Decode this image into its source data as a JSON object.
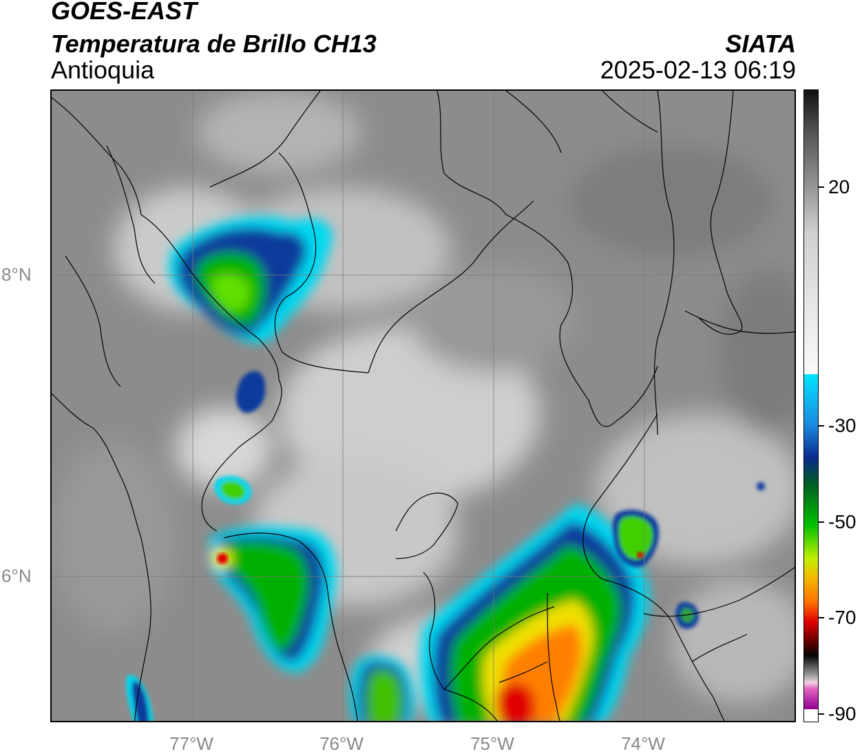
{
  "header": {
    "title": "GOES-EAST",
    "subtitle": "Temperatura de Brillo CH13",
    "region": "Antioquia",
    "organization": "SIATA",
    "timestamp": "2025-02-13 06:19"
  },
  "map": {
    "lat_labels": [
      "8°N",
      "6°N"
    ],
    "lon_labels": [
      "77°W",
      "76°W",
      "75°W",
      "74°W"
    ]
  },
  "colorbar": {
    "tick_labels": [
      "20",
      "-30",
      "-50",
      "-70",
      "-90"
    ],
    "colors": {
      "warm": "#1e1e1e",
      "mid": "#f5f5f5",
      "cyan": "#00e5ff",
      "blue": "#0a2a8c",
      "green": "#00c000",
      "yellow": "#f0f000",
      "orange": "#ff8000",
      "red": "#e00000",
      "dark": "#0a0a0a",
      "magenta": "#c040c0"
    }
  }
}
